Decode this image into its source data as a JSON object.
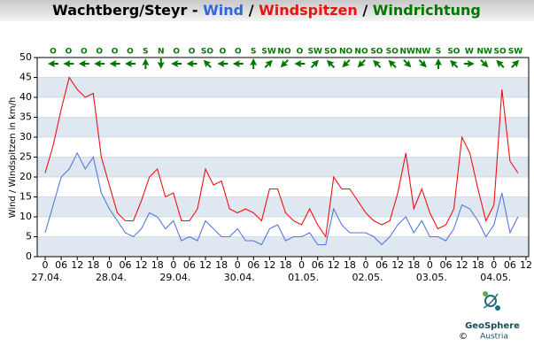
{
  "chart_data": {
    "type": "line",
    "title_parts": [
      "Wachtberg/Steyr -",
      "Wind",
      "/",
      "Windspitzen",
      "/",
      "Windrichtung"
    ],
    "title_colors": [
      "#000000",
      "#3366dd",
      "#000000",
      "#ee1111",
      "#000000",
      "#007700"
    ],
    "y_label": "Wind / Windspitzen in km/h",
    "x": [
      0,
      3,
      6,
      9,
      12,
      15,
      18,
      21,
      24,
      27,
      30,
      33,
      36,
      39,
      42,
      45,
      48,
      51,
      54,
      57,
      60,
      63,
      66,
      69,
      72,
      75,
      78,
      81,
      84,
      87,
      90,
      93,
      96,
      99,
      102,
      105,
      108,
      111,
      114,
      117,
      120,
      123,
      126,
      129,
      132,
      135,
      138,
      141,
      144,
      147,
      150,
      153,
      156,
      159,
      162,
      165,
      168,
      171,
      174,
      177
    ],
    "series": [
      {
        "name": "Windspitzen",
        "color": "#ee1111",
        "values": [
          21,
          28,
          37,
          45,
          42,
          40,
          41,
          25,
          18,
          11,
          9,
          9,
          14,
          20,
          22,
          15,
          16,
          9,
          9,
          12,
          22,
          18,
          19,
          12,
          11,
          12,
          11,
          9,
          17,
          17,
          11,
          9,
          8,
          12,
          8,
          5,
          20,
          17,
          17,
          14,
          11,
          9,
          8,
          9,
          16,
          26,
          12,
          17,
          11,
          7,
          8,
          12,
          30,
          26,
          17,
          9,
          13,
          42,
          24,
          21
        ]
      },
      {
        "name": "Wind",
        "color": "#5577dd",
        "values": [
          6,
          13,
          20,
          22,
          26,
          22,
          25,
          16,
          12,
          9,
          6,
          5,
          7,
          11,
          10,
          7,
          9,
          4,
          5,
          4,
          9,
          7,
          5,
          5,
          7,
          4,
          4,
          3,
          7,
          8,
          4,
          5,
          5,
          6,
          3,
          3,
          12,
          8,
          6,
          6,
          6,
          5,
          3,
          5,
          8,
          10,
          6,
          9,
          5,
          5,
          4,
          7,
          13,
          12,
          9,
          5,
          8,
          16,
          6,
          10
        ]
      }
    ],
    "directions": [
      "O",
      "O",
      "O",
      "O",
      "O",
      "O",
      "S",
      "N",
      "O",
      "O",
      "SO",
      "O",
      "O",
      "S",
      "SW",
      "NO",
      "O",
      "SW",
      "SO",
      "NO",
      "NO",
      "SO",
      "SO",
      "NW",
      "NW",
      "S",
      "SO",
      "W",
      "NW",
      "SO",
      "SW"
    ],
    "direction_color": "#007700",
    "band_color": "#dfe7f1",
    "xlim": [
      -3,
      181
    ],
    "ylim": [
      0,
      50
    ],
    "yticks": [
      0,
      5,
      10,
      15,
      20,
      25,
      30,
      35,
      40,
      45,
      50
    ],
    "xticks": [
      0,
      {
        "value": 6,
        "label": "06"
      },
      {
        "value": 12,
        "label": "12"
      },
      {
        "value": 18,
        "label": "18"
      },
      {
        "value": 24,
        "label": "0"
      },
      {
        "value": 30,
        "label": "06"
      },
      {
        "value": 36,
        "label": "12"
      },
      {
        "value": 42,
        "label": "18"
      },
      {
        "value": 48,
        "label": "0"
      },
      {
        "value": 54,
        "label": "06"
      },
      {
        "value": 60,
        "label": "12"
      },
      {
        "value": 66,
        "label": "18"
      },
      {
        "value": 72,
        "label": "0"
      },
      {
        "value": 78,
        "label": "06"
      },
      {
        "value": 84,
        "label": "12"
      },
      {
        "value": 90,
        "label": "18"
      },
      {
        "value": 96,
        "label": "0"
      },
      {
        "value": 102,
        "label": "06"
      },
      {
        "value": 108,
        "label": "12"
      },
      {
        "value": 114,
        "label": "18"
      },
      {
        "value": 120,
        "label": "0"
      },
      {
        "value": 126,
        "label": "06"
      },
      {
        "value": 132,
        "label": "12"
      },
      {
        "value": 138,
        "label": "18"
      },
      {
        "value": 144,
        "label": "0"
      },
      {
        "value": 150,
        "label": "06"
      },
      {
        "value": 156,
        "label": "12"
      },
      {
        "value": 162,
        "label": "18"
      },
      {
        "value": 168,
        "label": "0"
      },
      {
        "value": 174,
        "label": "06"
      },
      {
        "value": 180,
        "label": "12"
      }
    ],
    "dates": [
      {
        "value": 0,
        "label": "27.04."
      },
      {
        "value": 24,
        "label": "28.04."
      },
      {
        "value": 48,
        "label": "29.04."
      },
      {
        "value": 72,
        "label": "30.04."
      },
      {
        "value": 96,
        "label": "01.05."
      },
      {
        "value": 120,
        "label": "02.05."
      },
      {
        "value": 144,
        "label": "03.05."
      },
      {
        "value": 168,
        "label": "04.05."
      }
    ],
    "logo": {
      "name": "GeoSphere",
      "sub": "Austria",
      "copyright": "©"
    }
  }
}
